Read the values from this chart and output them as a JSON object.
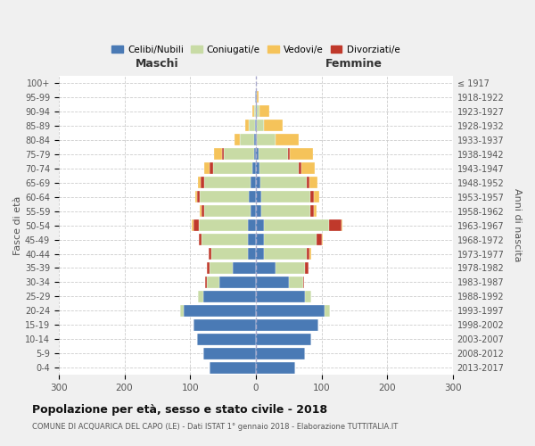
{
  "age_groups": [
    "0-4",
    "5-9",
    "10-14",
    "15-19",
    "20-24",
    "25-29",
    "30-34",
    "35-39",
    "40-44",
    "45-49",
    "50-54",
    "55-59",
    "60-64",
    "65-69",
    "70-74",
    "75-79",
    "80-84",
    "85-89",
    "90-94",
    "95-99",
    "100+"
  ],
  "birth_years": [
    "2013-2017",
    "2008-2012",
    "2003-2007",
    "1998-2002",
    "1993-1997",
    "1988-1992",
    "1983-1987",
    "1978-1982",
    "1973-1977",
    "1968-1972",
    "1963-1967",
    "1958-1962",
    "1953-1957",
    "1948-1952",
    "1943-1947",
    "1938-1942",
    "1933-1937",
    "1928-1932",
    "1923-1927",
    "1918-1922",
    "≤ 1917"
  ],
  "male": {
    "celibi": [
      70,
      80,
      90,
      95,
      110,
      80,
      55,
      35,
      12,
      12,
      12,
      8,
      10,
      8,
      5,
      3,
      2,
      1,
      0,
      1,
      0
    ],
    "coniugati": [
      0,
      0,
      0,
      0,
      5,
      8,
      20,
      35,
      55,
      70,
      75,
      70,
      75,
      70,
      60,
      45,
      22,
      10,
      3,
      0,
      0
    ],
    "vedovi": [
      0,
      0,
      0,
      0,
      0,
      0,
      0,
      0,
      0,
      0,
      2,
      2,
      2,
      4,
      8,
      12,
      8,
      5,
      2,
      0,
      0
    ],
    "divorziati": [
      0,
      0,
      0,
      0,
      0,
      0,
      2,
      5,
      5,
      5,
      8,
      5,
      5,
      6,
      5,
      3,
      0,
      0,
      0,
      0,
      0
    ]
  },
  "female": {
    "nubili": [
      60,
      75,
      85,
      95,
      105,
      75,
      50,
      30,
      12,
      12,
      12,
      8,
      8,
      7,
      5,
      4,
      2,
      1,
      1,
      1,
      0
    ],
    "coniugate": [
      0,
      0,
      0,
      0,
      8,
      10,
      22,
      45,
      65,
      80,
      100,
      75,
      75,
      70,
      60,
      45,
      28,
      12,
      5,
      0,
      0
    ],
    "vedove": [
      0,
      0,
      0,
      0,
      0,
      0,
      0,
      0,
      2,
      2,
      2,
      5,
      8,
      12,
      20,
      35,
      35,
      28,
      14,
      3,
      0
    ],
    "divorziate": [
      0,
      0,
      0,
      0,
      0,
      0,
      2,
      5,
      5,
      8,
      18,
      5,
      5,
      5,
      5,
      3,
      0,
      0,
      0,
      0,
      0
    ]
  },
  "colors": {
    "celibi": "#4a7ab5",
    "coniugati": "#c8dba5",
    "vedovi": "#f5c35a",
    "divorziati": "#c0392b"
  },
  "xlim": 300,
  "title": "Popolazione per età, sesso e stato civile - 2018",
  "subtitle": "COMUNE DI ACQUARICA DEL CAPO (LE) - Dati ISTAT 1° gennaio 2018 - Elaborazione TUTTITALIA.IT",
  "legend_labels": [
    "Celibi/Nubili",
    "Coniugati/e",
    "Vedovi/e",
    "Divorziati/e"
  ],
  "xlabel_left": "Maschi",
  "xlabel_right": "Femmine",
  "ylabel_left": "Fasce di età",
  "ylabel_right": "Anni di nascita",
  "bg_color": "#f0f0f0",
  "plot_bg_color": "#ffffff"
}
